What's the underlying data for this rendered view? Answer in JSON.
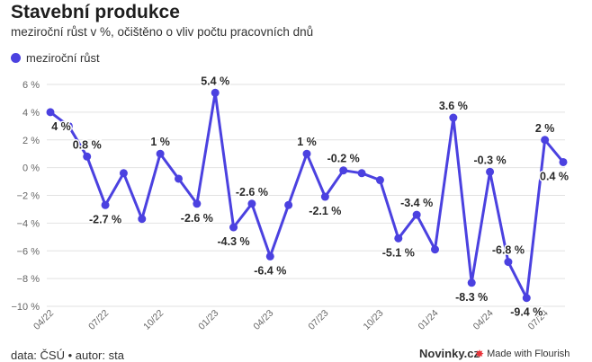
{
  "header": {
    "title": "Stavební produkce",
    "subtitle": "meziroční růst v %, očištěno o vliv počtu pracovních dnů"
  },
  "legend": {
    "label": "meziroční růst"
  },
  "footer": {
    "source": "data: ČSÚ • autor: sta",
    "brand": "Novinky.cz",
    "made_with": "Made with Flourish"
  },
  "colors": {
    "series": "#4b41e0",
    "grid": "#e2e2e2",
    "axis_text": "#666666"
  },
  "icons": {
    "flourish": "flourish-star-icon"
  },
  "chart_data": {
    "type": "line",
    "title": "Stavební produkce",
    "subtitle": "meziroční růst v %, očištěno o vliv počtu pracovních dnů",
    "ylim": [
      -10,
      6
    ],
    "yticks": [
      6,
      4,
      2,
      0,
      -2,
      -4,
      -6,
      -8,
      -10
    ],
    "ytick_labels": [
      "6 %",
      "4 %",
      "2 %",
      "0 %",
      "−2 %",
      "−4 %",
      "−6 %",
      "−8 %",
      "−10 %"
    ],
    "xtick_labels": [
      "04/22",
      "07/22",
      "10/22",
      "01/23",
      "04/23",
      "07/23",
      "10/23",
      "01/24",
      "04/24",
      "07/24"
    ],
    "grid": true,
    "legend_position": "top-left",
    "series": [
      {
        "name": "meziroční růst",
        "x": [
          "04/22",
          "05/22",
          "06/22",
          "07/22",
          "08/22",
          "09/22",
          "10/22",
          "11/22",
          "12/22",
          "01/23",
          "02/23",
          "03/23",
          "04/23",
          "05/23",
          "06/23",
          "07/23",
          "08/23",
          "09/23",
          "10/23",
          "11/23",
          "12/23",
          "01/24",
          "02/24",
          "03/24",
          "04/24",
          "05/24",
          "06/24",
          "07/24",
          "08/24"
        ],
        "values": [
          4.0,
          3.0,
          0.8,
          -2.7,
          -0.4,
          -3.7,
          1.0,
          -0.8,
          -2.6,
          5.4,
          -4.3,
          -2.6,
          -6.4,
          -2.7,
          1.0,
          -2.1,
          -0.2,
          -0.4,
          -0.9,
          -5.1,
          -3.4,
          -5.9,
          3.6,
          -8.3,
          -0.3,
          -6.8,
          -9.4,
          2.0,
          0.4
        ]
      }
    ],
    "data_labels": [
      {
        "i": 0,
        "text": "4 %"
      },
      {
        "i": 2,
        "text": "0.8 %"
      },
      {
        "i": 3,
        "text": "-2.7 %"
      },
      {
        "i": 6,
        "text": "1 %"
      },
      {
        "i": 8,
        "text": "-2.6 %"
      },
      {
        "i": 9,
        "text": "5.4 %"
      },
      {
        "i": 10,
        "text": "-4.3 %"
      },
      {
        "i": 11,
        "text": "-2.6 %"
      },
      {
        "i": 12,
        "text": "-6.4 %"
      },
      {
        "i": 14,
        "text": "1 %"
      },
      {
        "i": 15,
        "text": "-2.1 %"
      },
      {
        "i": 16,
        "text": "-0.2 %"
      },
      {
        "i": 19,
        "text": "-5.1 %"
      },
      {
        "i": 20,
        "text": "-3.4 %"
      },
      {
        "i": 22,
        "text": "3.6 %"
      },
      {
        "i": 23,
        "text": "-8.3 %"
      },
      {
        "i": 24,
        "text": "-0.3 %"
      },
      {
        "i": 25,
        "text": "-6.8 %"
      },
      {
        "i": 26,
        "text": "-9.4 %"
      },
      {
        "i": 27,
        "text": "2 %"
      },
      {
        "i": 28,
        "text": "0.4 %"
      }
    ]
  }
}
